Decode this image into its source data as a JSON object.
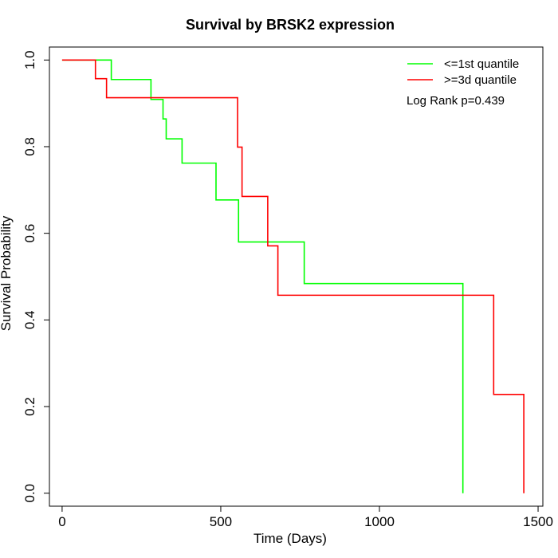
{
  "chart_data": {
    "type": "line",
    "title": "Survival by BRSK2 expression",
    "xlabel": "Time (Days)",
    "ylabel": "Survival Probability",
    "xlim": [
      -40,
      1515
    ],
    "ylim": [
      -0.03,
      1.03
    ],
    "xticks": [
      0,
      500,
      1000,
      1500
    ],
    "yticks": [
      0.0,
      0.2,
      0.4,
      0.6,
      0.8,
      1.0
    ],
    "xtick_labels": [
      "0",
      "500",
      "1000",
      "1500"
    ],
    "ytick_labels": [
      "0.0",
      "0.2",
      "0.4",
      "0.6",
      "0.8",
      "1.0"
    ],
    "grid": false,
    "legend_position": "top-right",
    "annotation": "Log Rank p=0.439",
    "series": [
      {
        "name": "<=1st quantile",
        "color": "#00ff00",
        "step": "post",
        "points": [
          [
            0,
            1.0
          ],
          [
            155,
            0.955
          ],
          [
            280,
            0.909
          ],
          [
            318,
            0.864
          ],
          [
            328,
            0.818
          ],
          [
            378,
            0.762
          ],
          [
            485,
            0.677
          ],
          [
            556,
            0.58
          ],
          [
            763,
            0.484
          ],
          [
            1263,
            0.0
          ]
        ]
      },
      {
        "name": ">=3d quantile",
        "color": "#ff0000",
        "step": "post",
        "points": [
          [
            0,
            1.0
          ],
          [
            105,
            0.957
          ],
          [
            140,
            0.913
          ],
          [
            553,
            0.799
          ],
          [
            567,
            0.685
          ],
          [
            648,
            0.571
          ],
          [
            680,
            0.457
          ],
          [
            1360,
            0.228
          ],
          [
            1455,
            0.0
          ]
        ]
      }
    ]
  }
}
